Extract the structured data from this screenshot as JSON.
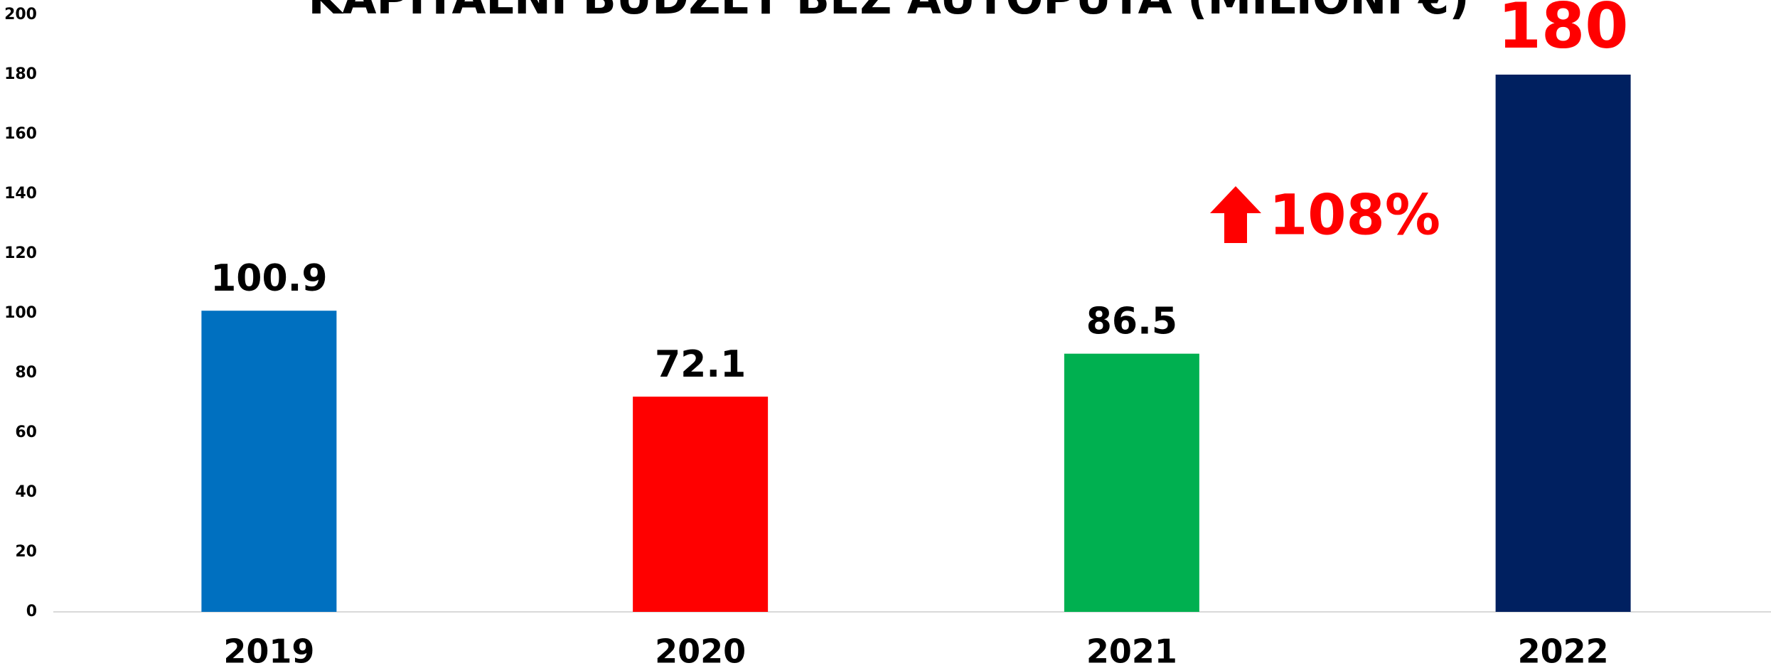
{
  "chart_data": {
    "type": "bar",
    "title": "KAPITALNI BUDŽET BEZ AUTOPUTA (MILIONI €)",
    "categories": [
      "2019",
      "2020",
      "2021",
      "2022"
    ],
    "values": [
      100.9,
      72.1,
      86.5,
      180
    ],
    "colors": [
      "#0070c0",
      "#ff0000",
      "#00b050",
      "#002060"
    ],
    "value_label_colors": [
      "#000000",
      "#000000",
      "#000000",
      "#ff0000"
    ],
    "ylim": [
      0,
      200
    ],
    "yticks": [
      0,
      20,
      40,
      60,
      80,
      100,
      120,
      140,
      160,
      180,
      200
    ],
    "annotation": {
      "text": "108%",
      "color": "#ff0000"
    }
  }
}
